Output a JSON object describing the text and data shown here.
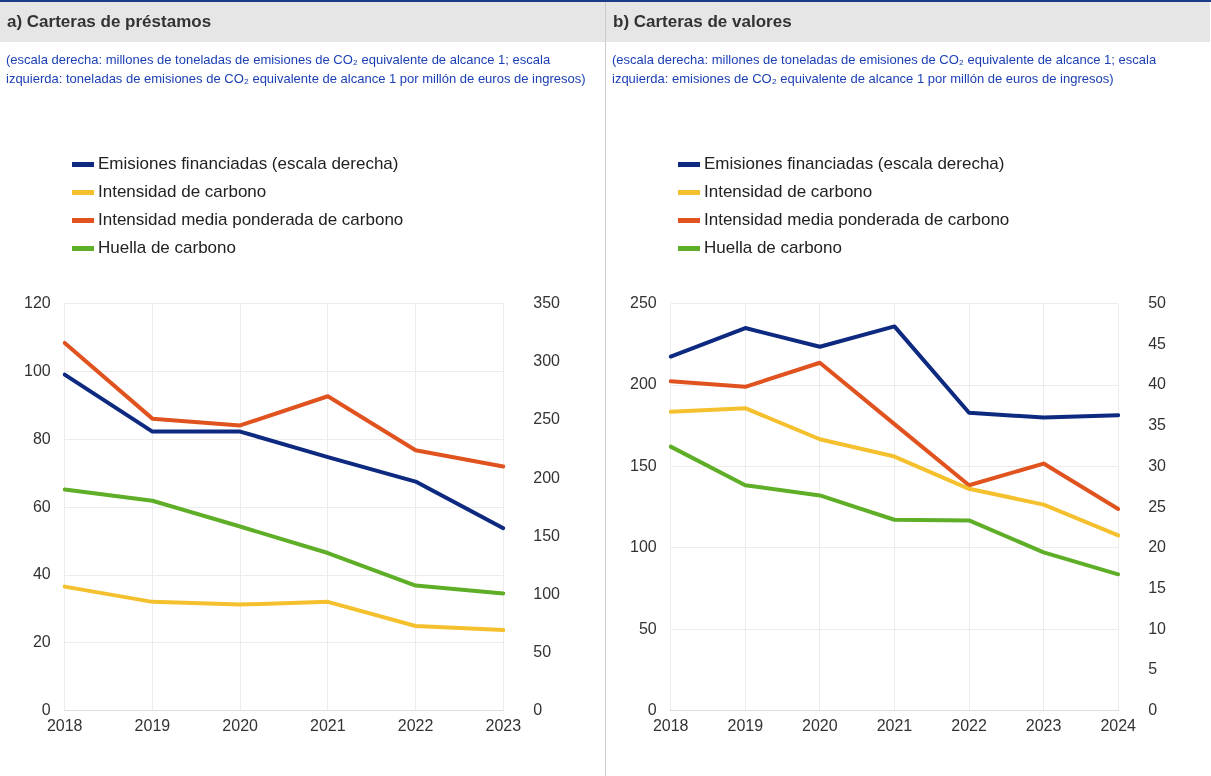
{
  "chart_data": [
    {
      "type": "line",
      "title": "a) Carteras de préstamos",
      "subtitle": "(escala derecha: millones de toneladas de emisiones de CO₂ equivalente de alcance 1; escala izquierda: toneladas de emisiones de CO₂ equivalente de alcance 1 por millón de euros de ingresos)",
      "categories": [
        "2018",
        "2019",
        "2020",
        "2021",
        "2022",
        "2023"
      ],
      "series": [
        {
          "name": "Emisiones financiadas (escala derecha)",
          "color": "#0d2a80",
          "axis": "y2",
          "values": [
            289,
            240,
            240,
            218,
            197,
            157
          ]
        },
        {
          "name": "Intensidad de carbono",
          "color": "#f5c02e",
          "values": [
            36.6,
            32.1,
            31.3,
            32.1,
            25,
            23.8
          ]
        },
        {
          "name": "Intensidad media ponderada de carbono",
          "color": "#e0531f",
          "values": [
            108.4,
            86.1,
            84.1,
            92.7,
            76.8,
            72
          ]
        },
        {
          "name": "Huella de carbono",
          "color": "#5fae27",
          "values": [
            65.2,
            61.9,
            54.3,
            46.5,
            36.9,
            34.6
          ]
        }
      ],
      "ylim": [
        0,
        120
      ],
      "yticks": [
        0,
        20,
        40,
        60,
        80,
        100,
        120
      ],
      "y2lim": [
        0,
        350
      ],
      "y2ticks": [
        0,
        50,
        100,
        150,
        200,
        250,
        300,
        350
      ],
      "grid": true,
      "legend": "top left",
      "marker": "none",
      "line_style": "solid"
    },
    {
      "type": "line",
      "title": "b) Carteras de valores",
      "subtitle": "(escala derecha: millones de toneladas de emisiones de CO₂ equivalente de alcance 1; escala izquierda: emisiones de CO₂ equivalente de alcance 1 por millón de euros de ingresos)",
      "categories": [
        "2018",
        "2019",
        "2020",
        "2021",
        "2022",
        "2023",
        "2024"
      ],
      "series": [
        {
          "name": "Emisiones financiadas (escala derecha)",
          "color": "#0d2a80",
          "axis": "y2",
          "values": [
            43.5,
            47,
            44.7,
            47.2,
            36.6,
            36,
            36.3
          ]
        },
        {
          "name": "Intensidad de carbono",
          "color": "#f5c02e",
          "values": [
            183.6,
            185.8,
            166.7,
            156.1,
            136.3,
            126.6,
            107.7
          ]
        },
        {
          "name": "Intensidad media ponderada de carbono",
          "color": "#e0531f",
          "values": [
            202.3,
            198.9,
            213.7,
            176,
            138.5,
            151.8,
            123.9
          ]
        },
        {
          "name": "Huella de carbono",
          "color": "#5fae27",
          "values": [
            162.2,
            138.5,
            132.2,
            117.3,
            116.9,
            97.3,
            83.8
          ]
        }
      ],
      "ylim": [
        0,
        250
      ],
      "yticks": [
        0,
        50,
        100,
        150,
        200,
        250
      ],
      "y2lim": [
        0,
        50
      ],
      "y2ticks": [
        0,
        5,
        10,
        15,
        20,
        25,
        30,
        35,
        40,
        45,
        50
      ],
      "grid": true,
      "legend": "top left",
      "marker": "none",
      "line_style": "solid"
    }
  ]
}
